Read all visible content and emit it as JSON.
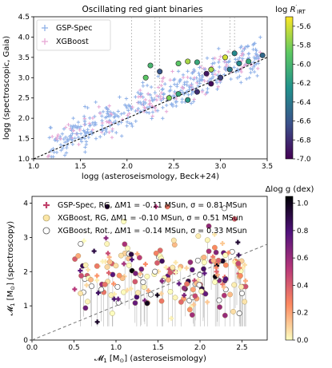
{
  "chart_data": [
    {
      "type": "scatter",
      "title": "Oscillating red giant binaries",
      "xlabel": "logg (asteroseismology, Beck+24)",
      "ylabel": "logg (spectroscopic, Gaia)",
      "xlim": [
        1.0,
        3.5
      ],
      "ylim": [
        1.0,
        4.5
      ],
      "xticks": [
        "1.0",
        "1.5",
        "2.0",
        "2.5",
        "3.0",
        "3.5"
      ],
      "yticks": [
        "1.0",
        "1.5",
        "2.0",
        "2.5",
        "3.0",
        "3.5",
        "4.0",
        "4.5"
      ],
      "legend": {
        "placement": "top-left",
        "entries": [
          "GSP-Spec",
          "XGBoost"
        ]
      },
      "series": [
        {
          "name": "GSP-Spec",
          "marker": "plus",
          "color": "#8fb1e8"
        },
        {
          "name": "XGBoost",
          "marker": "plus",
          "color": "#e7a8d6"
        }
      ],
      "highlighted_points": [
        {
          "x": 2.2,
          "y": 3.0,
          "c": -5.9
        },
        {
          "x": 2.25,
          "y": 3.3,
          "c": -6.0
        },
        {
          "x": 2.55,
          "y": 3.35,
          "c": -5.9
        },
        {
          "x": 2.65,
          "y": 3.4,
          "c": -5.7
        },
        {
          "x": 2.75,
          "y": 3.38,
          "c": -6.1
        },
        {
          "x": 2.85,
          "y": 3.1,
          "c": -6.9
        },
        {
          "x": 2.9,
          "y": 3.2,
          "c": -5.7
        },
        {
          "x": 3.05,
          "y": 3.5,
          "c": -5.6
        },
        {
          "x": 3.1,
          "y": 3.2,
          "c": -6.4
        },
        {
          "x": 3.2,
          "y": 3.35,
          "c": -6.3
        },
        {
          "x": 3.45,
          "y": 3.55,
          "c": -6.5
        },
        {
          "x": 2.35,
          "y": 3.15,
          "c": -6.6
        },
        {
          "x": 2.75,
          "y": 2.65,
          "c": -6.8
        },
        {
          "x": 2.9,
          "y": 2.85,
          "c": -6.95
        },
        {
          "x": 3.0,
          "y": 3.0,
          "c": -6.7
        },
        {
          "x": 2.65,
          "y": 2.45,
          "c": -6.2
        },
        {
          "x": 3.15,
          "y": 3.6,
          "c": -6.3
        },
        {
          "x": 3.3,
          "y": 3.4,
          "c": -6.1
        },
        {
          "x": 2.45,
          "y": 2.5,
          "c": -5.8
        },
        {
          "x": 2.55,
          "y": 2.6,
          "c": -6.1
        }
      ],
      "colorbar": {
        "label": "log R'IRT",
        "range": [
          -7.0,
          -5.5
        ],
        "ticks": [
          "-5.6",
          "-5.8",
          "-6.0",
          "-6.2",
          "-6.4",
          "-6.6",
          "-6.8",
          "-7.0"
        ]
      },
      "reference_line": "one-to-one, dashed black"
    },
    {
      "type": "scatter",
      "xlabel": "M1 [MSun] (asteroseismology)",
      "ylabel": "M1 [MSun] (spectroscopy)",
      "xlim": [
        0.0,
        2.8
      ],
      "ylim": [
        0.0,
        4.2
      ],
      "xticks": [
        "0.0",
        "0.5",
        "1.0",
        "1.5",
        "2.0",
        "2.5"
      ],
      "yticks": [
        "0",
        "1",
        "2",
        "3",
        "4"
      ],
      "legend": {
        "placement": "top-left",
        "entries": [
          "GSP-Spec, RG, ΔM1 = -0.11 MSun, σ = 0.81 MSun",
          "XGBoost, RG, ΔM1 = -0.10 MSun, σ = 0.51 MSun",
          "XGBoost, Rot., ΔM1 = -0.14 MSun, σ = 0.33 MSun"
        ]
      },
      "series": [
        {
          "name": "GSP-Spec, RG",
          "marker": "plus"
        },
        {
          "name": "XGBoost, RG",
          "marker": "circle"
        },
        {
          "name": "XGBoost, Rot.",
          "marker": "open-circle"
        }
      ],
      "colorbar": {
        "label": "Δlog g (dex)",
        "range": [
          0.0,
          1.05
        ],
        "ticks": [
          "0.0",
          "0.2",
          "0.4",
          "0.6",
          "0.8",
          "1.0"
        ]
      },
      "reference_line": "one-to-one, dashed grey"
    }
  ]
}
